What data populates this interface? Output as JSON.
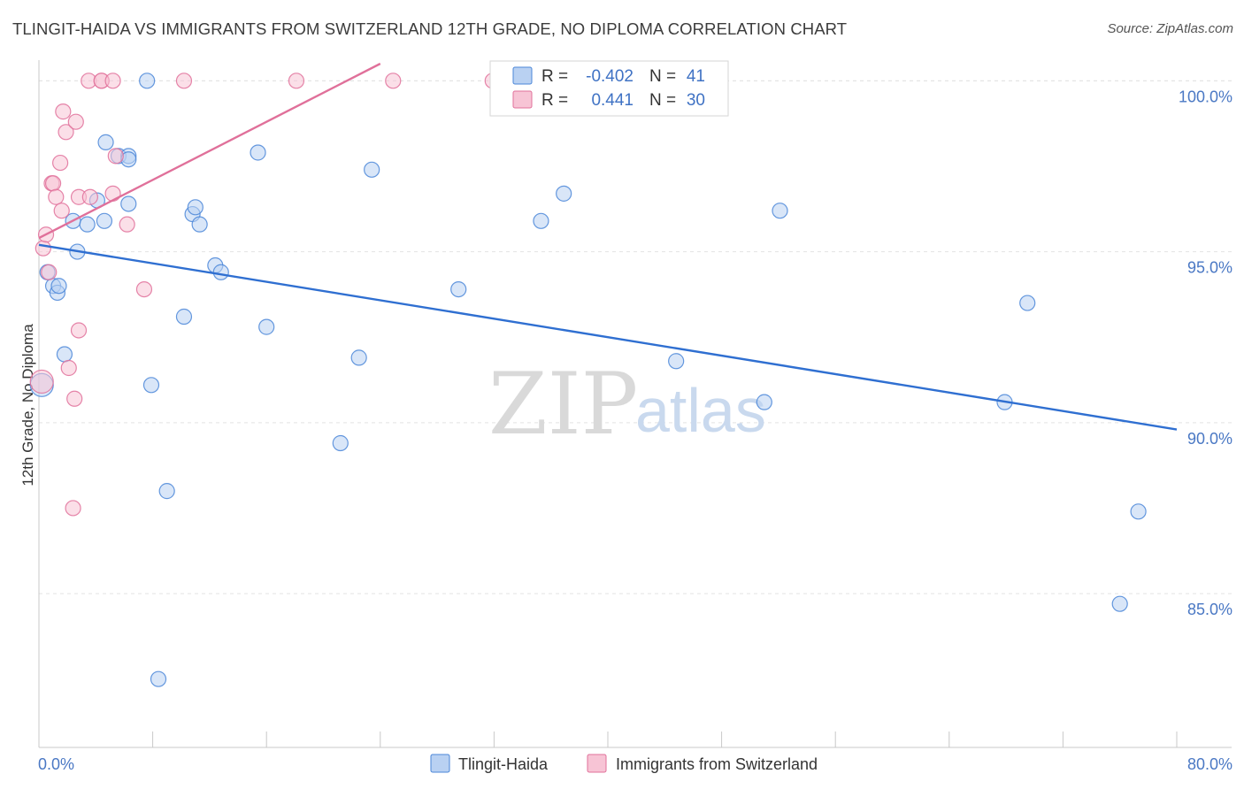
{
  "chart_data": {
    "type": "scatter",
    "title": "TLINGIT-HAIDA VS IMMIGRANTS FROM SWITZERLAND 12TH GRADE, NO DIPLOMA CORRELATION CHART",
    "source": "Source: ZipAtlas.com",
    "ylabel": "12th Grade, No Diploma",
    "xlabel": "",
    "x_tick_labels": [
      "0.0%",
      "80.0%"
    ],
    "y_tick_labels": [
      "100.0%",
      "95.0%",
      "90.0%",
      "85.0%"
    ],
    "y_ticks": [
      100,
      95,
      90,
      85
    ],
    "xlim": [
      0,
      80
    ],
    "ylim": [
      80.5,
      100.5
    ],
    "watermark": {
      "zip": "ZIP",
      "atlas": "atlas"
    },
    "colors": {
      "blue": "#4a86d8",
      "blue_fill": "#b9d1f2",
      "pink": "#e0709a",
      "pink_fill": "#f7c4d5",
      "axis_label": "#4a78c4"
    },
    "stats": [
      {
        "r_label": "R =",
        "r": "-0.402",
        "n_label": "N =",
        "n": "41"
      },
      {
        "r_label": "R =",
        "r": "0.441",
        "n_label": "N =",
        "n": "30"
      }
    ],
    "series": [
      {
        "name": "Tlingit-Haida",
        "color": "blue",
        "trend": {
          "x": [
            0,
            80
          ],
          "y": [
            95.2,
            89.8
          ]
        },
        "points": [
          [
            0.2,
            91.1
          ],
          [
            0.6,
            94.4
          ],
          [
            1.0,
            94.0
          ],
          [
            1.3,
            93.8
          ],
          [
            1.4,
            94.0
          ],
          [
            1.8,
            92.0
          ],
          [
            2.4,
            95.9
          ],
          [
            2.7,
            95.0
          ],
          [
            3.4,
            95.8
          ],
          [
            4.1,
            96.5
          ],
          [
            4.6,
            95.9
          ],
          [
            4.7,
            98.2
          ],
          [
            5.6,
            97.8
          ],
          [
            6.3,
            97.8
          ],
          [
            6.3,
            97.7
          ],
          [
            6.3,
            96.4
          ],
          [
            7.6,
            100.0
          ],
          [
            7.9,
            91.1
          ],
          [
            8.4,
            82.5
          ],
          [
            9.0,
            88.0
          ],
          [
            10.2,
            93.1
          ],
          [
            10.8,
            96.1
          ],
          [
            11.0,
            96.3
          ],
          [
            11.3,
            95.8
          ],
          [
            12.4,
            94.6
          ],
          [
            12.8,
            94.4
          ],
          [
            15.4,
            97.9
          ],
          [
            16.0,
            92.8
          ],
          [
            21.2,
            89.4
          ],
          [
            22.5,
            91.9
          ],
          [
            23.4,
            97.4
          ],
          [
            29.5,
            93.9
          ],
          [
            35.3,
            95.9
          ],
          [
            36.9,
            96.7
          ],
          [
            44.8,
            91.8
          ],
          [
            51.0,
            90.6
          ],
          [
            52.1,
            96.2
          ],
          [
            67.9,
            90.6
          ],
          [
            69.5,
            93.5
          ],
          [
            76.0,
            84.7
          ],
          [
            77.3,
            87.4
          ]
        ]
      },
      {
        "name": "Immigrants from Switzerland",
        "color": "pink",
        "trend": {
          "x": [
            0,
            24
          ],
          "y": [
            95.4,
            100.5
          ]
        },
        "points": [
          [
            0.2,
            91.2
          ],
          [
            0.3,
            95.1
          ],
          [
            0.5,
            95.5
          ],
          [
            0.7,
            94.4
          ],
          [
            0.9,
            97.0
          ],
          [
            1.0,
            97.0
          ],
          [
            1.2,
            96.6
          ],
          [
            1.5,
            97.6
          ],
          [
            1.6,
            96.2
          ],
          [
            1.7,
            99.1
          ],
          [
            1.9,
            98.5
          ],
          [
            2.1,
            91.6
          ],
          [
            2.5,
            90.7
          ],
          [
            2.4,
            87.5
          ],
          [
            2.6,
            98.8
          ],
          [
            2.8,
            92.7
          ],
          [
            2.8,
            96.6
          ],
          [
            3.6,
            96.6
          ],
          [
            3.5,
            100.0
          ],
          [
            4.4,
            100.0
          ],
          [
            4.4,
            100.0
          ],
          [
            5.2,
            100.0
          ],
          [
            5.2,
            96.7
          ],
          [
            5.4,
            97.8
          ],
          [
            6.2,
            95.8
          ],
          [
            7.4,
            93.9
          ],
          [
            10.2,
            100.0
          ],
          [
            18.1,
            100.0
          ],
          [
            24.9,
            100.0
          ],
          [
            31.9,
            100.0
          ]
        ]
      }
    ]
  }
}
